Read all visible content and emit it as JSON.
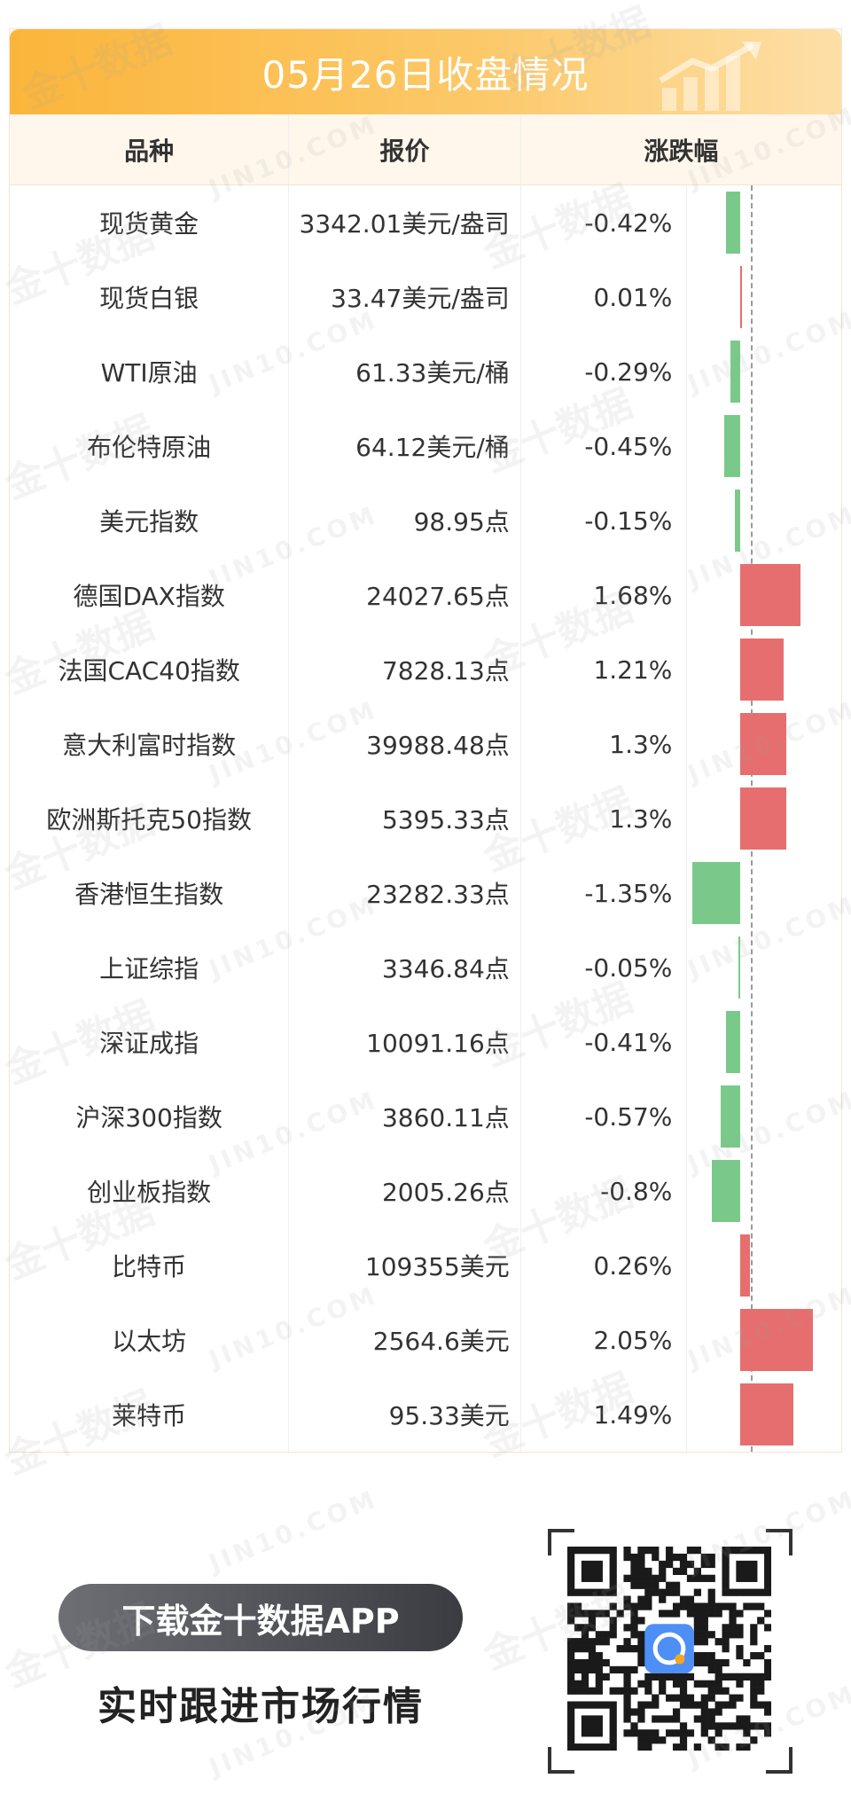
{
  "header": {
    "title": "05月26日收盘情况"
  },
  "table": {
    "columns": {
      "name": "品种",
      "price": "报价",
      "change": "涨跌幅"
    },
    "rows": [
      {
        "name": "现货黄金",
        "price": "3342.01美元/盎司",
        "change": "-0.42%",
        "pct": -0.42
      },
      {
        "name": "现货白银",
        "price": "33.47美元/盎司",
        "change": "0.01%",
        "pct": 0.01
      },
      {
        "name": "WTI原油",
        "price": "61.33美元/桶",
        "change": "-0.29%",
        "pct": -0.29
      },
      {
        "name": "布伦特原油",
        "price": "64.12美元/桶",
        "change": "-0.45%",
        "pct": -0.45
      },
      {
        "name": "美元指数",
        "price": "98.95点",
        "change": "-0.15%",
        "pct": -0.15
      },
      {
        "name": "德国DAX指数",
        "price": "24027.65点",
        "change": "1.68%",
        "pct": 1.68
      },
      {
        "name": "法国CAC40指数",
        "price": "7828.13点",
        "change": "1.21%",
        "pct": 1.21
      },
      {
        "name": "意大利富时指数",
        "price": "39988.48点",
        "change": "1.3%",
        "pct": 1.3
      },
      {
        "name": "欧洲斯托克50指数",
        "price": "5395.33点",
        "change": "1.3%",
        "pct": 1.3
      },
      {
        "name": "香港恒生指数",
        "price": "23282.33点",
        "change": "-1.35%",
        "pct": -1.35
      },
      {
        "name": "上证综指",
        "price": "3346.84点",
        "change": "-0.05%",
        "pct": -0.05
      },
      {
        "name": "深证成指",
        "price": "10091.16点",
        "change": "-0.41%",
        "pct": -0.41
      },
      {
        "name": "沪深300指数",
        "price": "3860.11点",
        "change": "-0.57%",
        "pct": -0.57
      },
      {
        "name": "创业板指数",
        "price": "2005.26点",
        "change": "-0.8%",
        "pct": -0.8
      },
      {
        "name": "比特币",
        "price": "109355美元",
        "change": "0.26%",
        "pct": 0.26
      },
      {
        "name": "以太坊",
        "price": "2564.6美元",
        "change": "2.05%",
        "pct": 2.05
      },
      {
        "name": "莱特币",
        "price": "95.33美元",
        "change": "1.49%",
        "pct": 1.49
      }
    ]
  },
  "colors": {
    "up": "#e66e6e",
    "down": "#7bc98a",
    "header_start": "#fbb53b",
    "header_end": "#fddfa7",
    "table_head_bg": "#fff7ec"
  },
  "icons": {
    "header_decoration": "rising-bar-chart-arrow-icon",
    "qr_logo": "jin10-app-logo-icon"
  },
  "footer": {
    "download_label": "下载金十数据APP",
    "slogan": "实时跟进市场行情"
  },
  "watermark": {
    "cn": "金十数据",
    "en": "JIN10.COM"
  }
}
